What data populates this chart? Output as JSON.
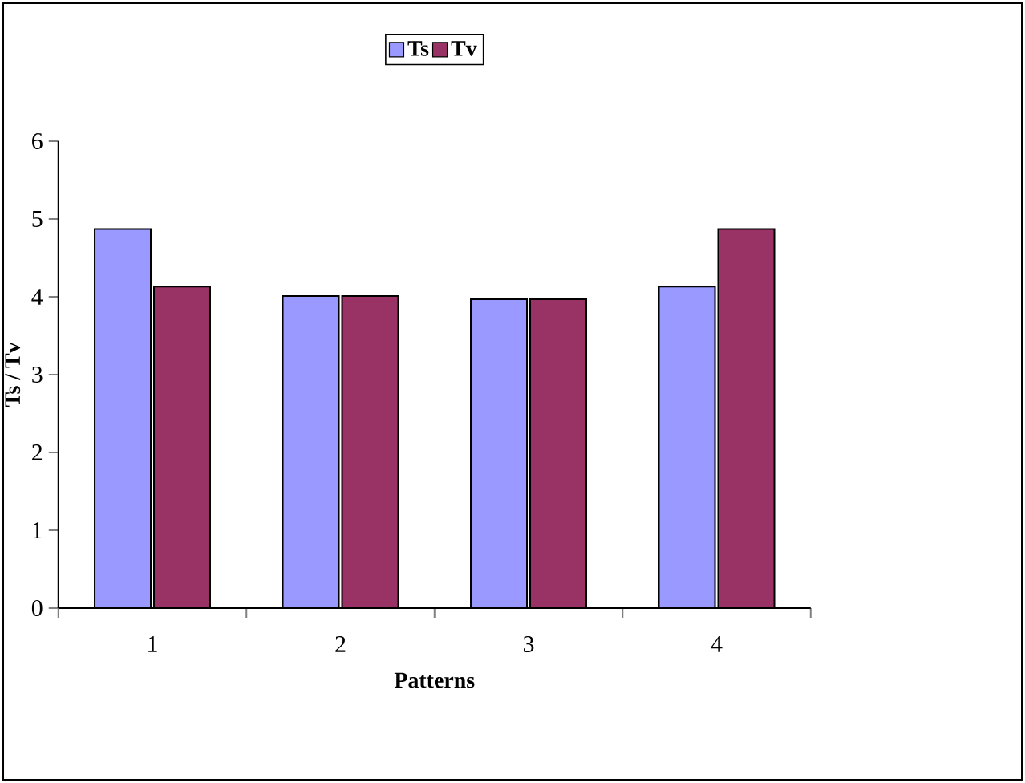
{
  "chart_data": {
    "type": "bar",
    "xlabel": "Patterns",
    "ylabel": "Ts / Tv",
    "categories": [
      "1",
      "2",
      "3",
      "4"
    ],
    "series": [
      {
        "name": "Ts",
        "color": "#9999ff",
        "values": [
          4.87,
          4.01,
          3.97,
          4.13
        ]
      },
      {
        "name": "Tv",
        "color": "#993366",
        "values": [
          4.13,
          4.01,
          3.97,
          4.87
        ]
      }
    ],
    "ylim": [
      0,
      6
    ],
    "yticks": [
      0,
      1,
      2,
      3,
      4,
      5,
      6
    ],
    "grid": false,
    "legend": "top"
  }
}
